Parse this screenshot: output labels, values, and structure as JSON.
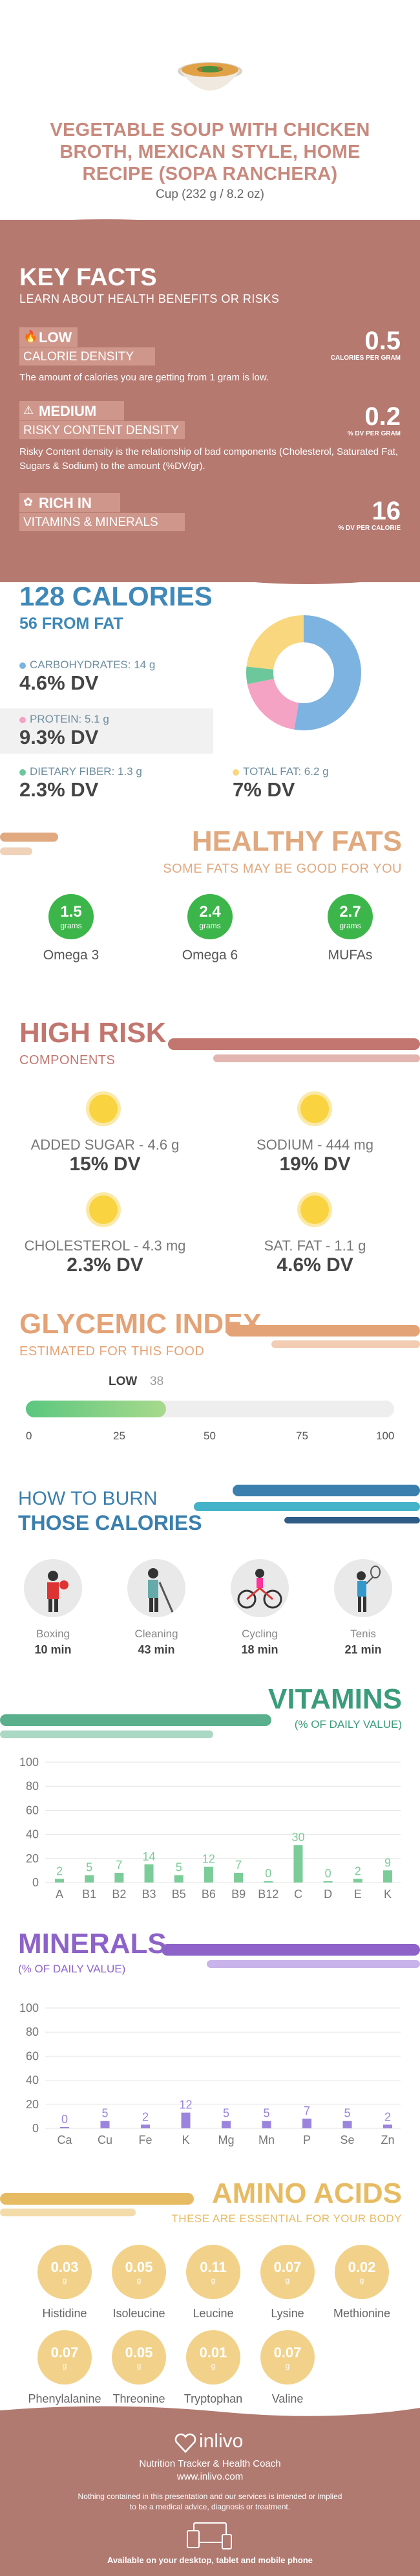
{
  "header": {
    "title_lines": [
      "VEGETABLE SOUP WITH CHICKEN",
      "BROTH, MEXICAN STYLE, HOME",
      "RECIPE (SOPA RANCHERA)"
    ],
    "serving": "Cup (232 g / 8.2 oz)"
  },
  "key_facts": {
    "title": "KEY FACTS",
    "subtitle": "LEARN ABOUT HEALTH BENEFITS OR RISKS",
    "items": [
      {
        "level": "LOW",
        "name": "CALORIE DENSITY",
        "value": "0.5",
        "unit": "CALORIES PER GRAM",
        "desc": "The amount of calories you are getting from 1 gram is low."
      },
      {
        "level": "MEDIUM",
        "name": "RISKY CONTENT DENSITY",
        "value": "0.2",
        "unit": "% DV PER GRAM",
        "desc": "Risky Content density is the relationship of bad components (Cholesterol, Saturated Fat, Sugars & Sodium) to the amount (%DV/gr)."
      },
      {
        "level": "RICH IN",
        "name": "VITAMINS & MINERALS",
        "value": "16",
        "unit": "% DV PER CALORIE",
        "desc": ""
      }
    ]
  },
  "calories": {
    "title": "128 CALORIES",
    "from_fat": "56 FROM FAT",
    "nutrients": [
      {
        "label": "CARBOHYDRATES: 14 g",
        "dv": "4.6% DV",
        "color": "#7db3e0"
      },
      {
        "label": "PROTEIN: 5.1 g",
        "dv": "9.3% DV",
        "color": "#f4a3c4"
      },
      {
        "label": "DIETARY FIBER: 1.3 g",
        "dv": "2.3% DV",
        "color": "#6cc79a"
      },
      {
        "label": "TOTAL FAT: 6.2 g",
        "dv": "7% DV",
        "color": "#f8d77e"
      }
    ]
  },
  "chart_data": [
    {
      "type": "pie",
      "title": "",
      "categories": [
        "Carbohydrates",
        "Protein",
        "Dietary fiber",
        "Total fat"
      ],
      "values": [
        14,
        5.1,
        1.3,
        6.2
      ],
      "colors": [
        "#7db3e0",
        "#f4a3c4",
        "#6cc79a",
        "#f8d77e"
      ]
    },
    {
      "type": "bar",
      "title": "VITAMINS",
      "subtitle": "(% OF DAILY VALUE)",
      "categories": [
        "A",
        "B1",
        "B2",
        "B3",
        "B5",
        "B6",
        "B9",
        "B12",
        "C",
        "D",
        "E",
        "K"
      ],
      "values": [
        2,
        5,
        7,
        14,
        5,
        12,
        7,
        0,
        30,
        0,
        2,
        9
      ],
      "ylim": [
        0,
        100
      ],
      "yticks": [
        0,
        20,
        40,
        60,
        80,
        100
      ],
      "color": "#7ccc9a"
    },
    {
      "type": "bar",
      "title": "MINERALS",
      "subtitle": "(% OF DAILY VALUE)",
      "categories": [
        "Ca",
        "Cu",
        "Fe",
        "K",
        "Mg",
        "Mn",
        "P",
        "Se",
        "Zn"
      ],
      "values": [
        0,
        5,
        2,
        12,
        5,
        5,
        7,
        5,
        2
      ],
      "ylim": [
        0,
        100
      ],
      "yticks": [
        0,
        20,
        40,
        60,
        80,
        100
      ],
      "color": "#9b84dd"
    }
  ],
  "healthy_fats": {
    "title": "HEALTHY FATS",
    "subtitle": "SOME FATS MAY BE GOOD FOR YOU",
    "items": [
      {
        "value": "1.5",
        "unit": "grams",
        "name": "Omega 3"
      },
      {
        "value": "2.4",
        "unit": "grams",
        "name": "Omega 6"
      },
      {
        "value": "2.7",
        "unit": "grams",
        "name": "MUFAs"
      }
    ]
  },
  "high_risk": {
    "title": "HIGH RISK",
    "subtitle": "COMPONENTS",
    "items": [
      {
        "name": "ADDED SUGAR - 4.6 g",
        "dv": "15% DV"
      },
      {
        "name": "SODIUM - 444 mg",
        "dv": "19% DV"
      },
      {
        "name": "CHOLESTEROL - 4.3 mg",
        "dv": "2.3% DV"
      },
      {
        "name": "SAT. FAT - 1.1 g",
        "dv": "4.6% DV"
      }
    ]
  },
  "glycemic": {
    "title": "GLYCEMIC INDEX",
    "subtitle": "ESTIMATED FOR THIS FOOD",
    "level": "LOW",
    "value": "38",
    "value_num": 38,
    "scale": [
      "0",
      "25",
      "50",
      "75",
      "100"
    ]
  },
  "burn": {
    "title1": "HOW TO BURN",
    "title2": "THOSE CALORIES",
    "activities": [
      {
        "name": "Boxing",
        "time": "10 min",
        "icon": "boxing-icon"
      },
      {
        "name": "Cleaning",
        "time": "43 min",
        "icon": "cleaning-icon"
      },
      {
        "name": "Cycling",
        "time": "18 min",
        "icon": "cycling-icon"
      },
      {
        "name": "Tenis",
        "time": "21 min",
        "icon": "tennis-icon"
      }
    ]
  },
  "vitamins": {
    "title": "VITAMINS",
    "subtitle": "(% OF DAILY VALUE)"
  },
  "minerals": {
    "title": "MINERALS",
    "subtitle": "(% OF DAILY VALUE)"
  },
  "amino": {
    "title": "AMINO ACIDS",
    "subtitle": "THESE ARE ESSENTIAL FOR YOUR BODY",
    "unit": "g",
    "items": [
      {
        "value": "0.03",
        "name": "Histidine"
      },
      {
        "value": "0.05",
        "name": "Isoleucine"
      },
      {
        "value": "0.11",
        "name": "Leucine"
      },
      {
        "value": "0.07",
        "name": "Lysine"
      },
      {
        "value": "0.02",
        "name": "Methionine"
      },
      {
        "value": "0.07",
        "name": "Phenylalanine"
      },
      {
        "value": "0.05",
        "name": "Threonine"
      },
      {
        "value": "0.01",
        "name": "Tryptophan"
      },
      {
        "value": "0.07",
        "name": "Valine"
      }
    ]
  },
  "footer": {
    "brand": "inlivo",
    "tagline": "Nutrition Tracker & Health Coach",
    "url": "www.inlivo.com",
    "disclaimer1": "Nothing contained in this presentation and our services is intended or implied",
    "disclaimer2": "to be a medical advice, diagnosis or treatment.",
    "available": "Available on your desktop, tablet and mobile phone"
  },
  "colors": {
    "accent": "#b57970",
    "blue": "#3f88b8",
    "green": "#3cb54a"
  }
}
